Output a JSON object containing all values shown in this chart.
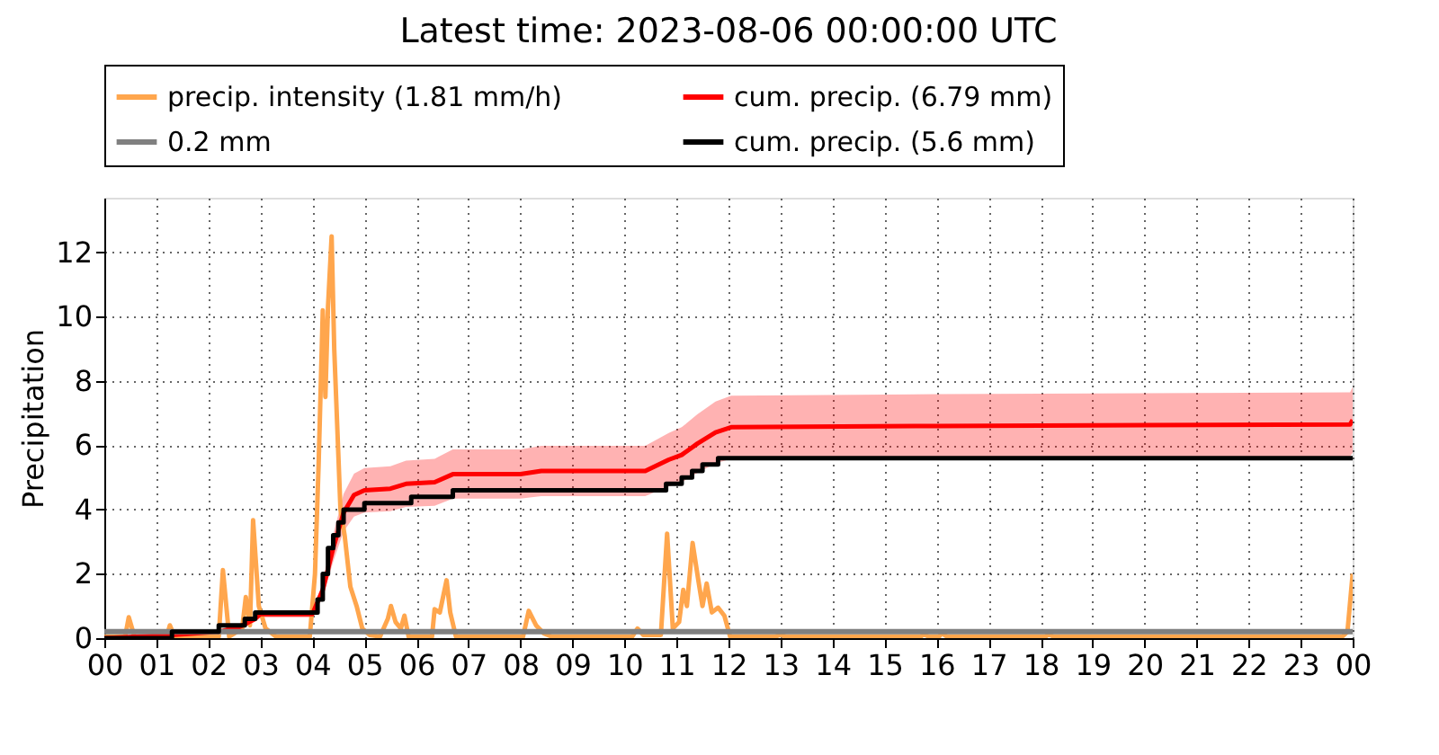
{
  "chart_data": {
    "type": "line",
    "title": "Latest time: 2023-08-06 00:00:00 UTC",
    "ylabel": "Precipitation",
    "xlim": [
      0,
      24
    ],
    "xticks": [
      {
        "value": 0,
        "label": "00"
      },
      {
        "value": 1,
        "label": "01"
      },
      {
        "value": 2,
        "label": "02"
      },
      {
        "value": 3,
        "label": "03"
      },
      {
        "value": 4,
        "label": "04"
      },
      {
        "value": 5,
        "label": "05"
      },
      {
        "value": 6,
        "label": "06"
      },
      {
        "value": 7,
        "label": "07"
      },
      {
        "value": 8,
        "label": "08"
      },
      {
        "value": 9,
        "label": "09"
      },
      {
        "value": 10,
        "label": "10"
      },
      {
        "value": 11,
        "label": "11"
      },
      {
        "value": 12,
        "label": "12"
      },
      {
        "value": 13,
        "label": "13"
      },
      {
        "value": 14,
        "label": "14"
      },
      {
        "value": 15,
        "label": "15"
      },
      {
        "value": 16,
        "label": "16"
      },
      {
        "value": 17,
        "label": "17"
      },
      {
        "value": 18,
        "label": "18"
      },
      {
        "value": 19,
        "label": "19"
      },
      {
        "value": 20,
        "label": "20"
      },
      {
        "value": 21,
        "label": "21"
      },
      {
        "value": 22,
        "label": "22"
      },
      {
        "value": 23,
        "label": "23"
      },
      {
        "value": 24,
        "label": "00"
      }
    ],
    "ylim": [
      0,
      13.7
    ],
    "yticks": [
      0,
      2,
      4,
      6,
      8,
      10,
      12
    ],
    "grid": true,
    "legend": "top",
    "line_style": "solid",
    "series": [
      {
        "name": "precip. intensity (1.81 mm/h)",
        "color": "#ffa64d",
        "x": [
          0,
          0.4,
          0.47,
          0.58,
          1.2,
          1.26,
          1.35,
          2.2,
          2.28,
          2.4,
          2.65,
          2.72,
          2.8,
          2.86,
          2.97,
          3.1,
          3.3,
          3.95,
          4.05,
          4.12,
          4.2,
          4.25,
          4.3,
          4.37,
          4.42,
          4.48,
          4.54,
          4.62,
          4.73,
          4.85,
          4.96,
          5.1,
          5.3,
          5.45,
          5.51,
          5.6,
          5.7,
          5.77,
          5.85,
          6.3,
          6.35,
          6.45,
          6.58,
          6.65,
          6.76,
          8.05,
          8.16,
          8.3,
          8.45,
          8.6,
          10.15,
          10.25,
          10.36,
          10.7,
          10.82,
          10.93,
          11.05,
          11.13,
          11.2,
          11.31,
          11.42,
          11.5,
          11.58,
          11.68,
          11.8,
          11.92,
          12.03,
          12.9,
          13.0,
          13.1,
          15.7,
          15.75,
          15.85,
          16.05,
          16.1,
          16.2,
          18.1,
          18.15,
          18.25,
          23.8,
          23.9,
          24
        ],
        "values": [
          0.05,
          0.05,
          0.65,
          0.05,
          0.05,
          0.4,
          0.05,
          0.05,
          2.12,
          0.05,
          0.3,
          1.28,
          0.4,
          3.67,
          1.0,
          0.3,
          0.05,
          0.05,
          2.0,
          5.4,
          10.2,
          7.5,
          10.3,
          12.5,
          9.0,
          6.5,
          4.0,
          3.2,
          1.6,
          1.0,
          0.3,
          0.1,
          0.05,
          0.6,
          1.0,
          0.5,
          0.3,
          0.7,
          0.05,
          0.05,
          0.9,
          0.8,
          1.8,
          0.8,
          0.05,
          0.05,
          0.85,
          0.4,
          0.15,
          0.05,
          0.05,
          0.3,
          0.1,
          0.1,
          3.25,
          0.3,
          0.5,
          1.5,
          1.0,
          2.96,
          1.8,
          1.0,
          1.7,
          0.8,
          0.95,
          0.7,
          0.05,
          0.05,
          0.1,
          0.05,
          0.05,
          0.12,
          0.05,
          0.05,
          0.15,
          0.05,
          0.05,
          0.12,
          0.05,
          0.05,
          0.2,
          2.0
        ]
      },
      {
        "name": "cum. precip. (6.79 mm)",
        "color": "#ff0000",
        "x": [
          0,
          1.3,
          2.2,
          2.6,
          2.9,
          3.0,
          4.0,
          4.2,
          4.4,
          4.6,
          4.8,
          5.0,
          5.5,
          5.8,
          6.35,
          6.7,
          8.0,
          8.4,
          10.4,
          10.85,
          11.1,
          11.4,
          11.75,
          12.05,
          16,
          23.95,
          24
        ],
        "values": [
          0,
          0.1,
          0.2,
          0.35,
          0.6,
          0.75,
          0.75,
          1.5,
          2.8,
          3.9,
          4.45,
          4.6,
          4.65,
          4.8,
          4.85,
          5.1,
          5.1,
          5.2,
          5.2,
          5.55,
          5.7,
          6.05,
          6.4,
          6.56,
          6.6,
          6.65,
          6.79
        ],
        "lower": [
          0,
          0.09,
          0.17,
          0.3,
          0.51,
          0.64,
          0.64,
          1.28,
          2.38,
          3.32,
          3.78,
          3.91,
          3.95,
          4.08,
          4.12,
          4.34,
          4.34,
          4.42,
          4.42,
          4.72,
          4.85,
          5.14,
          5.44,
          5.58,
          5.61,
          5.65,
          5.77
        ],
        "upper": [
          0,
          0.12,
          0.23,
          0.4,
          0.69,
          0.86,
          0.86,
          1.73,
          3.22,
          4.49,
          5.12,
          5.29,
          5.35,
          5.52,
          5.58,
          5.87,
          5.87,
          5.98,
          5.98,
          6.38,
          6.56,
          6.96,
          7.36,
          7.54,
          7.59,
          7.65,
          7.81
        ]
      },
      {
        "name": "0.2 mm",
        "color": "#808080",
        "x": [
          0,
          24
        ],
        "values": [
          0.2,
          0.2
        ]
      },
      {
        "name": "cum. precip. (5.6 mm)",
        "color": "#000000",
        "type": "step",
        "x": [
          0,
          1.3,
          2.2,
          2.7,
          2.9,
          4.0,
          4.1,
          4.2,
          4.3,
          4.4,
          4.5,
          4.6,
          5.0,
          5.9,
          6.7,
          10.8,
          11.1,
          11.3,
          11.5,
          11.8,
          24
        ],
        "values": [
          0,
          0.2,
          0.4,
          0.6,
          0.8,
          0.8,
          1.2,
          2.0,
          2.8,
          3.2,
          3.6,
          4.0,
          4.2,
          4.4,
          4.6,
          4.8,
          5.0,
          5.2,
          5.4,
          5.6,
          5.6
        ]
      }
    ]
  }
}
